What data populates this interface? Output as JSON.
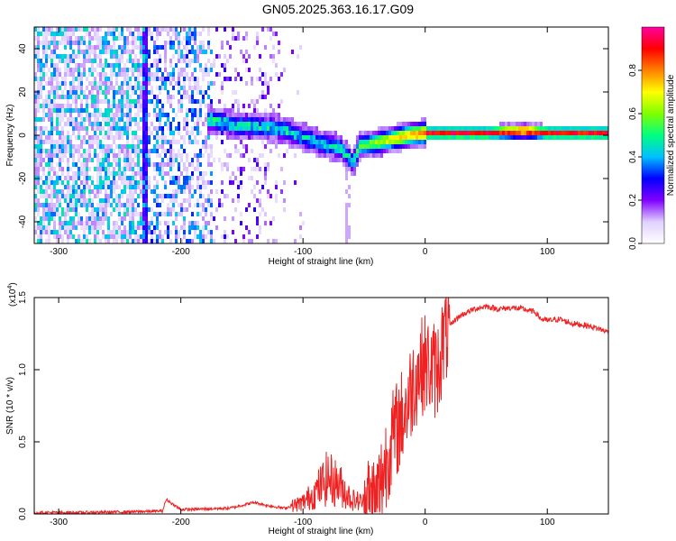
{
  "title": "GN05.2025.363.16.17.G09",
  "chart_data": [
    {
      "type": "heatmap",
      "name": "spectrogram",
      "xlabel": "Height of straight line (km)",
      "ylabel": "Frequency (Hz)",
      "xlim": [
        -320,
        150
      ],
      "ylim": [
        -50,
        50
      ],
      "x_ticks": [
        -300,
        -200,
        -100,
        0,
        100
      ],
      "y_ticks": [
        -40,
        -20,
        0,
        20,
        40
      ],
      "colorbar": {
        "label": "Normalized spectral amplitude",
        "range": [
          0,
          1
        ],
        "ticks": [
          "0.0",
          "0.2",
          "0.4",
          "0.6",
          "0.8"
        ],
        "colors": [
          "#ffffff",
          "#e0d0ff",
          "#8000ff",
          "#0000ff",
          "#00c0ff",
          "#00ff80",
          "#80ff00",
          "#ffff00",
          "#ff8000",
          "#ff0000",
          "#ff00a0"
        ]
      },
      "ridge": {
        "x": [
          -175,
          -160,
          -140,
          -120,
          -100,
          -85,
          -70,
          -60,
          -55,
          -45,
          -30,
          -15,
          0,
          20,
          50,
          80,
          100,
          120,
          150
        ],
        "y": [
          8,
          6,
          5,
          4,
          0,
          -3,
          -5,
          -12,
          -4,
          -3,
          -1,
          1,
          2,
          2,
          2,
          3,
          2,
          2,
          2
        ]
      }
    },
    {
      "type": "line",
      "name": "snr",
      "xlabel": "Height of straight line (km)",
      "ylabel": "SNR (10 * v/v)",
      "exponent_label": "(x10",
      "exponent_power": "4",
      "exponent_close": ")",
      "xlim": [
        -320,
        150
      ],
      "ylim": [
        0,
        1.5
      ],
      "x_ticks": [
        -300,
        -200,
        -100,
        0,
        100
      ],
      "y_ticks": [
        "0.0",
        "0.5",
        "1.0",
        "1.5"
      ],
      "color": "#ee2222",
      "series": [
        {
          "x": [
            -320,
            -280,
            -240,
            -215,
            -212,
            -200,
            -160,
            -140,
            -130,
            -115,
            -100,
            -90,
            -80,
            -70,
            -60,
            -50,
            -40,
            -35,
            -30,
            -25,
            -20,
            -15,
            -10,
            -5,
            0,
            5,
            10,
            15,
            20,
            25,
            30,
            40,
            50,
            60,
            70,
            80,
            90,
            95,
            100,
            110,
            120,
            130,
            140,
            150
          ],
          "y": [
            0.01,
            0.01,
            0.015,
            0.02,
            0.1,
            0.03,
            0.04,
            0.08,
            0.06,
            0.04,
            0.08,
            0.15,
            0.25,
            0.2,
            0.1,
            0.08,
            0.1,
            0.25,
            0.45,
            0.55,
            0.65,
            0.75,
            0.9,
            1.0,
            1.05,
            1.0,
            1.0,
            1.2,
            1.3,
            1.35,
            1.38,
            1.42,
            1.44,
            1.42,
            1.43,
            1.42,
            1.4,
            1.35,
            1.34,
            1.35,
            1.32,
            1.31,
            1.29,
            1.26
          ]
        }
      ]
    }
  ]
}
